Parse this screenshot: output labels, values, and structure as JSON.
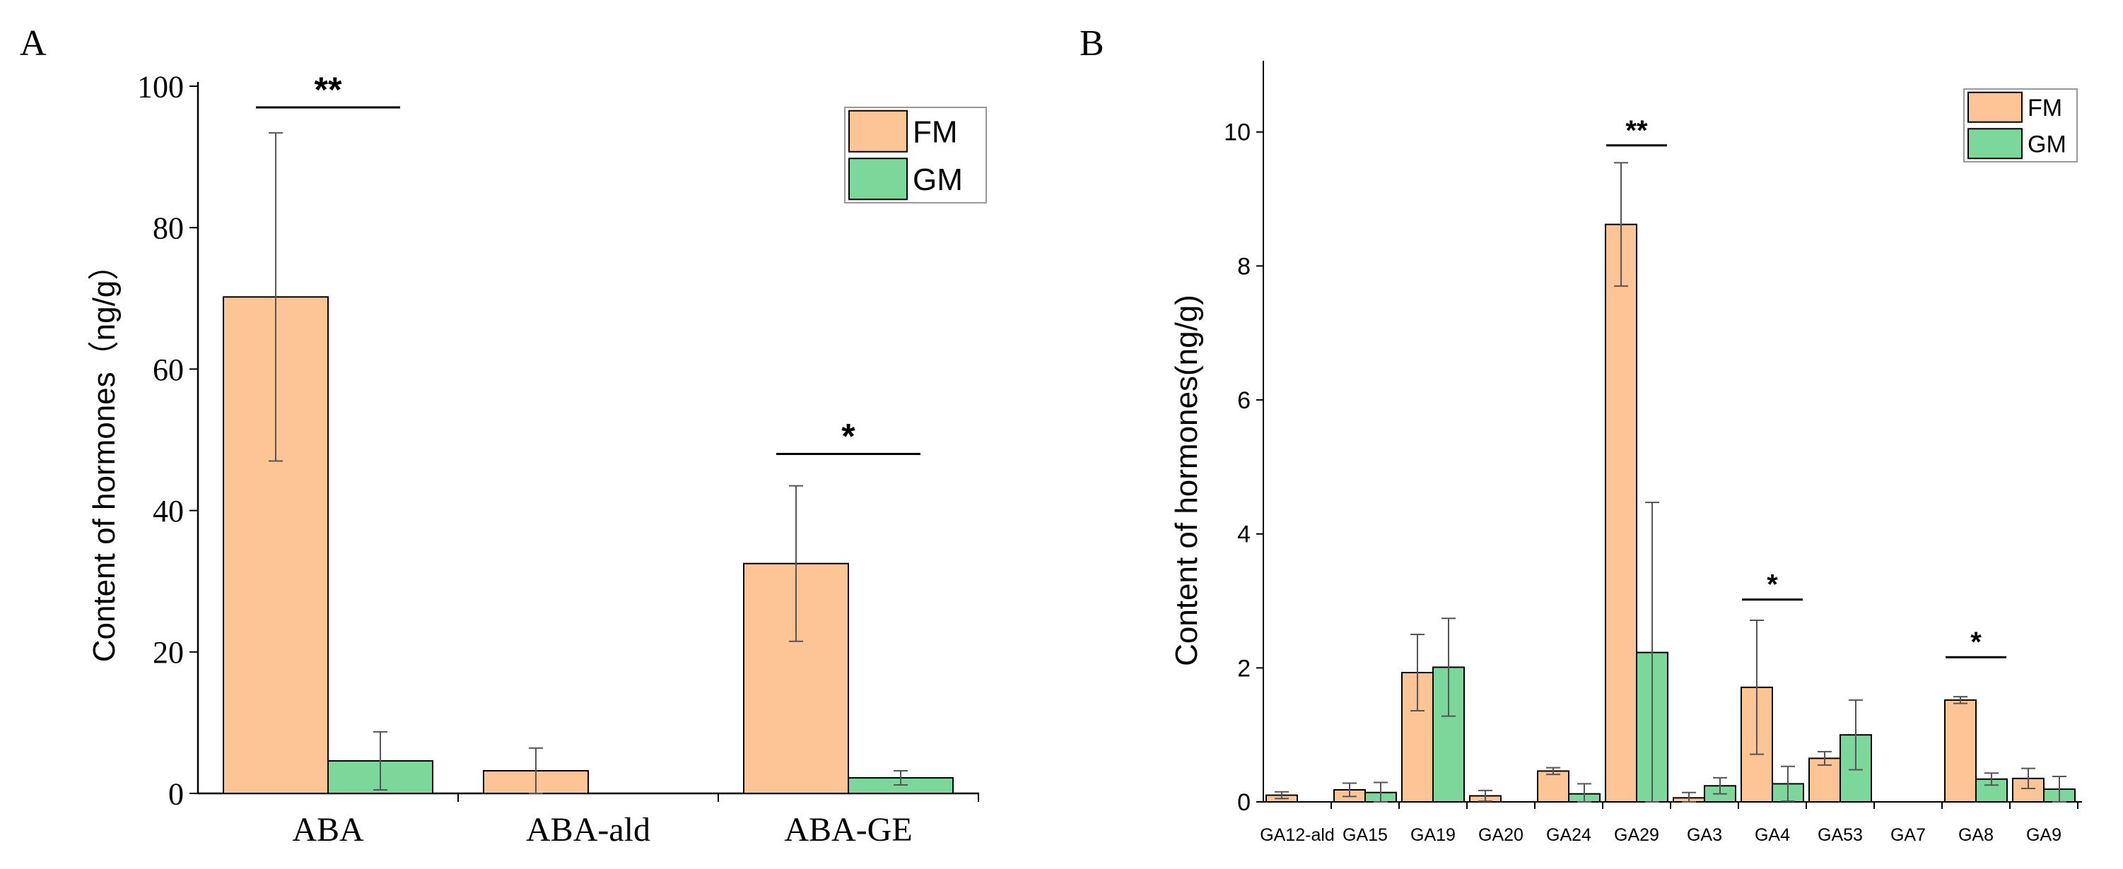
{
  "colors": {
    "fm": "#FDC595",
    "gm": "#7CD89A",
    "axis": "#000000",
    "error": "#555555"
  },
  "chart_data": [
    {
      "panel": "A",
      "type": "bar",
      "title": "",
      "xlabel": "",
      "ylabel": "Content of hormones（ng/g）",
      "ylim": [
        0,
        100
      ],
      "yticks": [
        "0",
        "20",
        "40",
        "60",
        "80",
        "100"
      ],
      "categories": [
        "ABA",
        "ABA-ald",
        "ABA-GE"
      ],
      "series": [
        {
          "name": "FM",
          "values": [
            70.2,
            3.2,
            32.5
          ],
          "errors": [
            23.2,
            3.2,
            11.0
          ]
        },
        {
          "name": "GM",
          "values": [
            4.6,
            0,
            2.2
          ],
          "errors": [
            4.1,
            0,
            1.0
          ]
        }
      ],
      "legend": [
        "FM",
        "GM"
      ],
      "legend_position": "top-right",
      "significance": [
        {
          "category": "ABA",
          "label": "**",
          "y": 97
        },
        {
          "category": "ABA-GE",
          "label": "*",
          "y": 48
        }
      ]
    },
    {
      "panel": "B",
      "type": "bar",
      "title": "",
      "xlabel": "",
      "ylabel": "Content of hormones(ng/g)",
      "ylim": [
        0,
        11
      ],
      "yticks": [
        "0",
        "2",
        "4",
        "6",
        "8",
        "10"
      ],
      "categories": [
        "GA12-ald",
        "GA15",
        "GA19",
        "GA20",
        "GA24",
        "GA29",
        "GA3",
        "GA4",
        "GA53",
        "GA7",
        "GA8",
        "GA9"
      ],
      "series": [
        {
          "name": "FM",
          "values": [
            0.1,
            0.18,
            1.93,
            0.09,
            0.46,
            8.62,
            0.06,
            1.71,
            0.65,
            0,
            1.52,
            0.35
          ],
          "errors": [
            0.05,
            0.1,
            0.57,
            0.08,
            0.05,
            0.92,
            0.08,
            1.0,
            0.1,
            0,
            0.05,
            0.15
          ]
        },
        {
          "name": "GM",
          "values": [
            0,
            0.14,
            2.01,
            0,
            0.12,
            2.23,
            0.24,
            0.27,
            1.0,
            0,
            0.34,
            0.19
          ],
          "errors": [
            0,
            0.15,
            0.73,
            0,
            0.15,
            2.24,
            0.12,
            0.26,
            0.52,
            0,
            0.09,
            0.19
          ]
        }
      ],
      "legend": [
        "FM",
        "GM"
      ],
      "legend_position": "top-right",
      "significance": [
        {
          "category": "GA29",
          "label": "**",
          "y": 9.8
        },
        {
          "category": "GA4",
          "label": "*",
          "y": 3.02
        },
        {
          "category": "GA8",
          "label": "*",
          "y": 2.16
        }
      ]
    }
  ]
}
